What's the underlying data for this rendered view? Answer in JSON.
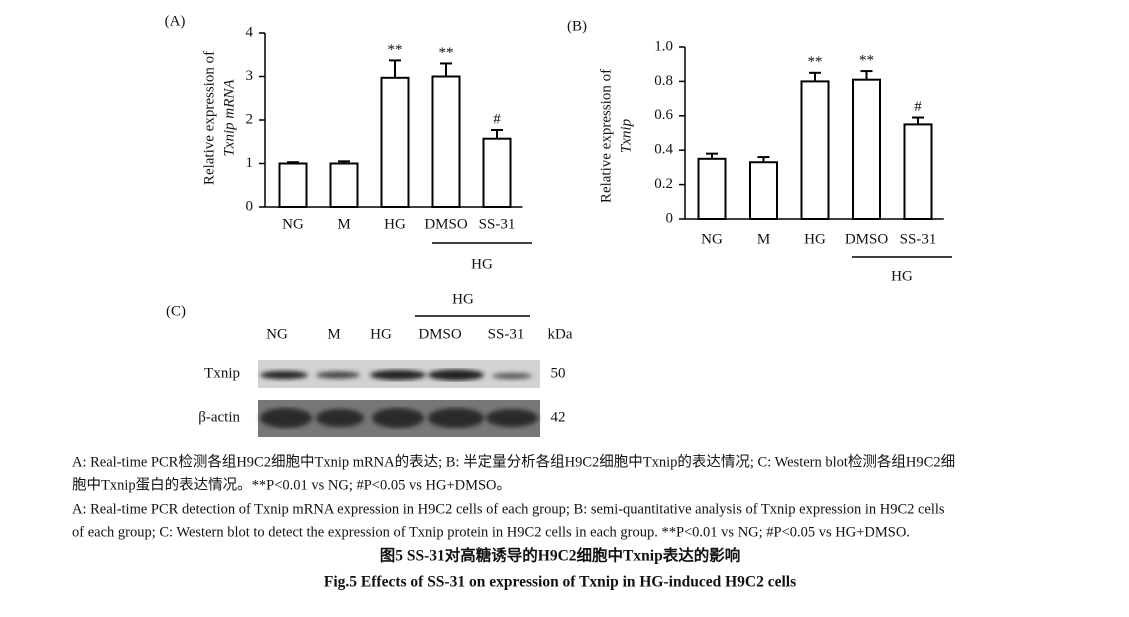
{
  "chart_data": [
    {
      "type": "bar",
      "panel": "(A)",
      "ylabel": [
        "Relative expression of",
        "Txnip mRNA"
      ],
      "categories": [
        "NG",
        "M",
        "HG",
        "DMSO",
        "SS-31"
      ],
      "values": [
        1.0,
        1.0,
        2.97,
        3.0,
        1.57
      ],
      "errors": [
        0.03,
        0.05,
        0.4,
        0.3,
        0.2
      ],
      "annotations": [
        null,
        null,
        "**",
        "**",
        "#"
      ],
      "group_label": "HG",
      "color": "#ffffff",
      "ylim": [
        0,
        4
      ],
      "yticks": [
        0,
        1,
        2,
        3,
        4
      ]
    },
    {
      "type": "bar",
      "panel": "(B)",
      "ylabel": [
        "Relative expression of",
        "Txnip"
      ],
      "categories": [
        "NG",
        "M",
        "HG",
        "DMSO",
        "SS-31"
      ],
      "values": [
        0.35,
        0.33,
        0.8,
        0.81,
        0.55
      ],
      "errors": [
        0.03,
        0.03,
        0.05,
        0.05,
        0.04
      ],
      "annotations": [
        null,
        null,
        "**",
        "**",
        "#"
      ],
      "group_label": "HG",
      "color": "#ffffff",
      "ylim": [
        0,
        1
      ],
      "yticks": [
        0,
        0.2,
        0.4,
        0.6,
        0.8,
        {
          "value": 1,
          "label": "1.0"
        }
      ]
    }
  ],
  "panel_c": {
    "panel": "(C)",
    "group_label": "HG",
    "lanes": [
      "NG",
      "M",
      "HG",
      "DMSO",
      "SS-31"
    ],
    "unit": "kDa",
    "rows": [
      {
        "label": "Txnip",
        "kda": "50"
      },
      {
        "label": "β-actin",
        "kda": "42"
      }
    ]
  },
  "caption": {
    "lines": [
      "A: Real-time PCR检测各组H9C2细胞中Txnip mRNA的表达; B: 半定量分析各组H9C2细胞中Txnip的表达情况; C: Western blot检测各组H9C2细",
      "胞中Txnip蛋白的表达情况。**P<0.01 vs NG; #P<0.05 vs HG+DMSO。",
      "A: Real-time PCR detection of Txnip mRNA expression in H9C2 cells of each group; B: semi-quantitative analysis of Txnip expression in H9C2 cells",
      "of each group; C: Western blot to detect the expression of Txnip protein in H9C2 cells in each group. **P<0.01 vs NG; #P<0.05 vs HG+DMSO."
    ],
    "title_cn": "图5 SS-31对高糖诱导的H9C2细胞中Txnip表达的影响",
    "title_en": "Fig.5 Effects of SS-31 on expression of Txnip in HG-induced H9C2 cells"
  }
}
